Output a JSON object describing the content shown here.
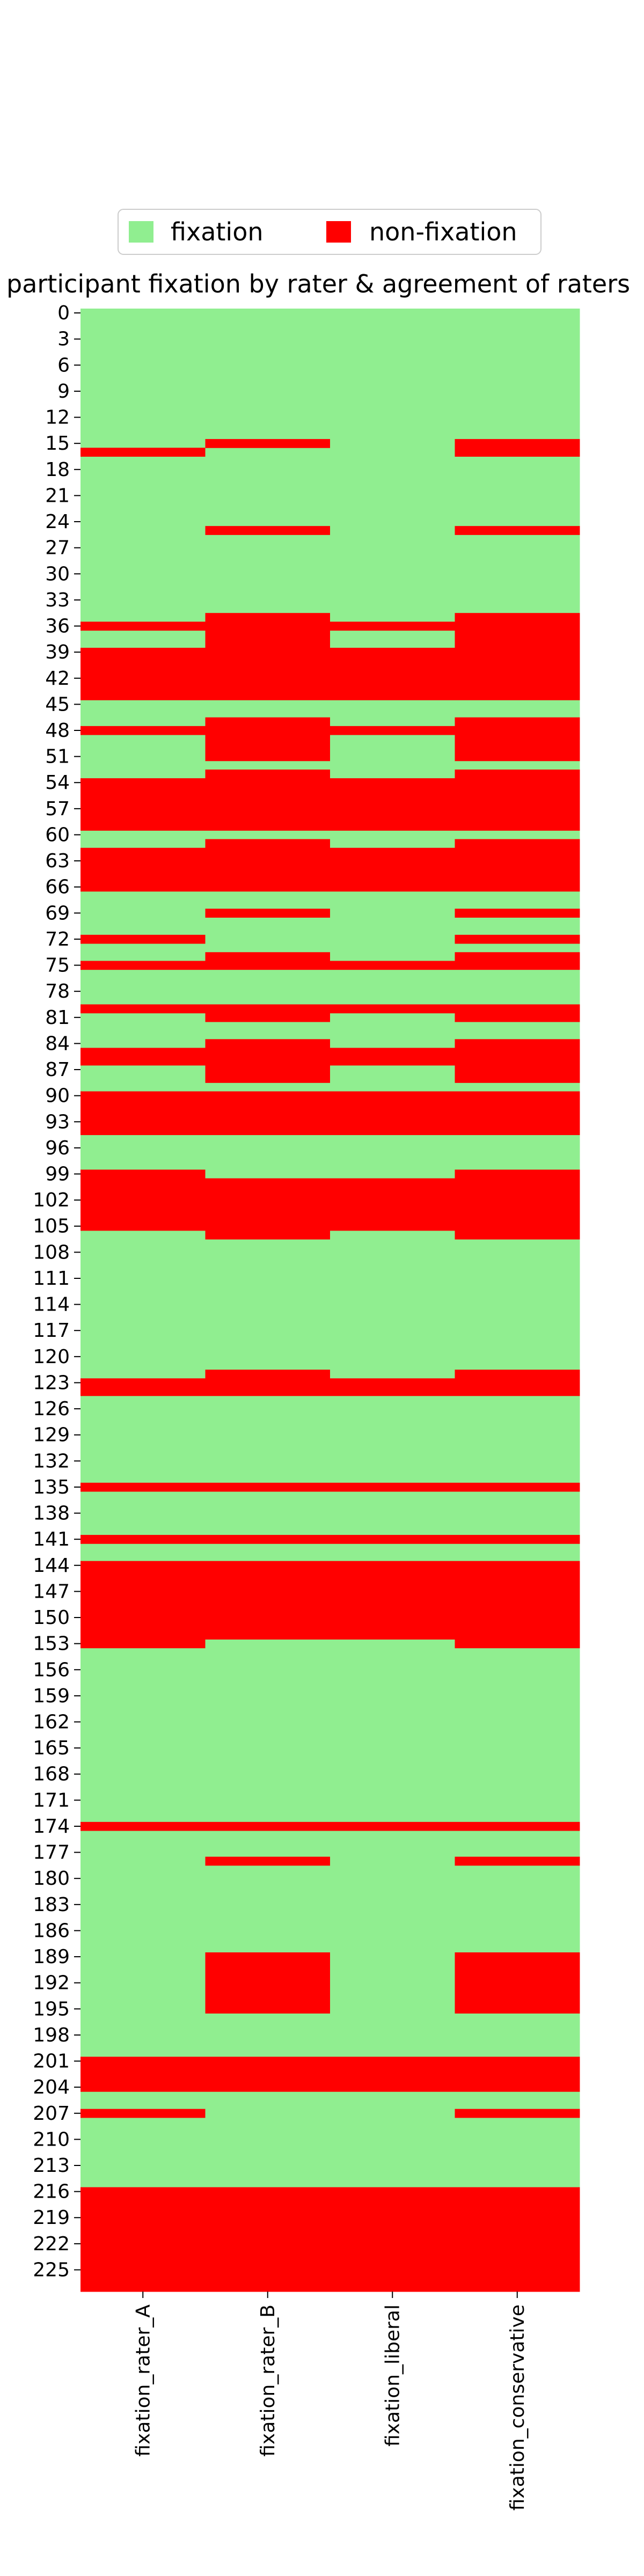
{
  "chart_data": {
    "type": "heatmap",
    "title": "participant fixation by rater & agreement of raters",
    "columns": [
      "fixation_rater_A",
      "fixation_rater_B",
      "fixation_liberal",
      "fixation_conservative"
    ],
    "y_tick_labels": [
      "0",
      "3",
      "6",
      "9",
      "12",
      "15",
      "18",
      "21",
      "24",
      "27",
      "30",
      "33",
      "36",
      "39",
      "42",
      "45",
      "48",
      "51",
      "54",
      "57",
      "60",
      "63",
      "66",
      "69",
      "72",
      "75",
      "78",
      "81",
      "84",
      "87",
      "90",
      "93",
      "96",
      "99",
      "102",
      "105",
      "108",
      "111",
      "114",
      "117",
      "120",
      "123",
      "126",
      "129",
      "132",
      "135",
      "138",
      "141",
      "144",
      "147",
      "150",
      "153",
      "156",
      "159",
      "162",
      "165",
      "168",
      "171",
      "174",
      "177",
      "180",
      "183",
      "186",
      "189",
      "192",
      "195",
      "198",
      "201",
      "204",
      "207",
      "210",
      "213",
      "216",
      "219",
      "222",
      "225"
    ],
    "row_count": 228,
    "legend": [
      {
        "label": "fixation",
        "color": "#90ee90"
      },
      {
        "label": "non-fixation",
        "color": "#ff0000"
      }
    ],
    "legend_position": "top-center",
    "non_fixation_rows": {
      "fixation_rater_A": [
        16,
        36,
        39,
        40,
        41,
        42,
        43,
        44,
        48,
        54,
        55,
        56,
        57,
        58,
        59,
        62,
        63,
        64,
        65,
        66,
        72,
        75,
        80,
        85,
        86,
        90,
        91,
        92,
        93,
        94,
        99,
        100,
        101,
        102,
        103,
        104,
        105,
        123,
        124,
        135,
        141,
        144,
        145,
        146,
        147,
        148,
        149,
        150,
        151,
        152,
        153,
        174,
        201,
        202,
        203,
        204,
        207,
        216,
        217,
        218,
        219,
        220,
        221,
        222,
        223,
        224,
        225,
        226,
        227
      ],
      "fixation_rater_B": [
        15,
        25,
        35,
        36,
        37,
        38,
        39,
        40,
        41,
        42,
        43,
        44,
        47,
        48,
        49,
        50,
        51,
        53,
        54,
        55,
        56,
        57,
        58,
        59,
        61,
        62,
        63,
        64,
        65,
        66,
        69,
        74,
        75,
        80,
        81,
        84,
        85,
        86,
        87,
        88,
        90,
        91,
        92,
        93,
        94,
        100,
        101,
        102,
        103,
        104,
        105,
        106,
        122,
        123,
        124,
        135,
        141,
        144,
        145,
        146,
        147,
        148,
        149,
        150,
        151,
        152,
        174,
        178,
        189,
        190,
        191,
        192,
        193,
        194,
        195,
        201,
        202,
        203,
        204,
        216,
        217,
        218,
        219,
        220,
        221,
        222,
        223,
        224,
        225,
        226,
        227
      ],
      "fixation_liberal": [
        36,
        39,
        40,
        41,
        42,
        43,
        44,
        48,
        54,
        55,
        56,
        57,
        58,
        59,
        62,
        63,
        64,
        65,
        66,
        75,
        80,
        85,
        86,
        90,
        91,
        92,
        93,
        94,
        100,
        101,
        102,
        103,
        104,
        105,
        123,
        124,
        135,
        141,
        144,
        145,
        146,
        147,
        148,
        149,
        150,
        151,
        152,
        174,
        201,
        202,
        203,
        204,
        216,
        217,
        218,
        219,
        220,
        221,
        222,
        223,
        224,
        225,
        226,
        227
      ],
      "fixation_conservative": [
        15,
        16,
        25,
        35,
        36,
        37,
        38,
        39,
        40,
        41,
        42,
        43,
        44,
        47,
        48,
        49,
        50,
        51,
        53,
        54,
        55,
        56,
        57,
        58,
        59,
        61,
        62,
        63,
        64,
        65,
        66,
        69,
        72,
        74,
        75,
        80,
        81,
        84,
        85,
        86,
        87,
        88,
        90,
        91,
        92,
        93,
        94,
        99,
        100,
        101,
        102,
        103,
        104,
        105,
        106,
        122,
        123,
        124,
        135,
        141,
        144,
        145,
        146,
        147,
        148,
        149,
        150,
        151,
        152,
        153,
        174,
        178,
        189,
        190,
        191,
        192,
        193,
        194,
        195,
        201,
        202,
        203,
        204,
        207,
        216,
        217,
        218,
        219,
        220,
        221,
        222,
        223,
        224,
        225,
        226,
        227
      ]
    }
  }
}
